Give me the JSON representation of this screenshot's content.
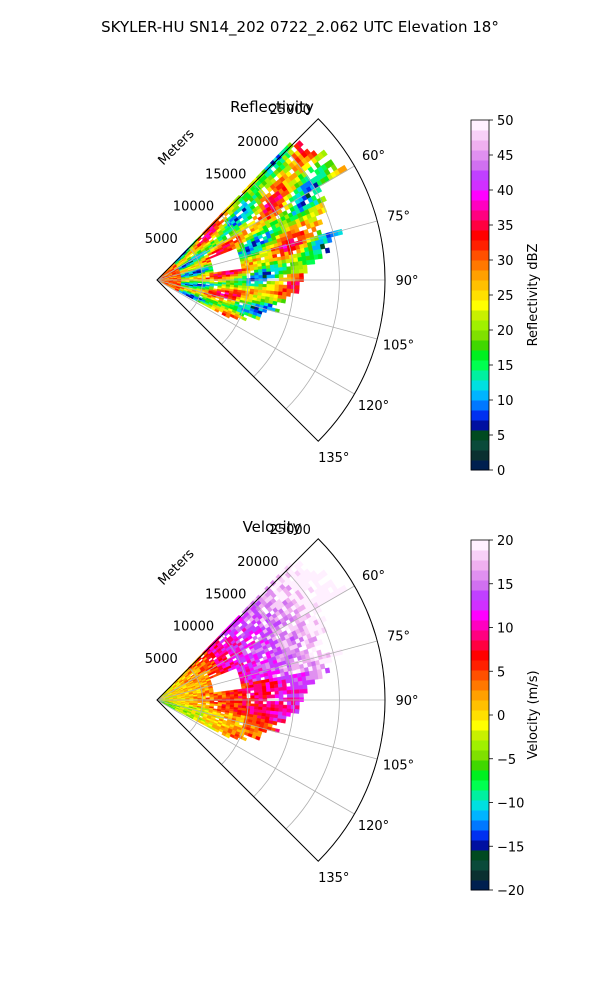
{
  "figure": {
    "suptitle": "SKYLER-HU  SN14_202  0722_2.062 UTC Elevation 18°"
  },
  "chart_data": [
    {
      "type": "heatmap",
      "projection": "polar-sector",
      "title": "Reflectivity",
      "radial_label": "Meters",
      "radial_ticks": [
        5000,
        10000,
        15000,
        20000,
        25000
      ],
      "radial_tick_labels": [
        "5000",
        "10000",
        "15000",
        "20000",
        "25000"
      ],
      "angle_ticks": [
        60,
        75,
        90,
        105,
        120,
        135
      ],
      "angle_tick_labels": [
        "60°",
        "75°",
        "90°",
        "105°",
        "120°",
        "135°"
      ],
      "angle_range": [
        45,
        135
      ],
      "radial_range": [
        0,
        25000
      ],
      "grid": true,
      "colorbar": {
        "label": "Reflectivity dBZ",
        "range": [
          0,
          50
        ],
        "ticks": [
          0,
          5,
          10,
          15,
          20,
          25,
          30,
          35,
          40,
          45,
          50
        ],
        "tick_labels": [
          "0",
          "5",
          "10",
          "15",
          "20",
          "25",
          "30",
          "35",
          "40",
          "45",
          "50"
        ],
        "colors": [
          "#001f4f",
          "#0a3030",
          "#0a4a3a",
          "#004a20",
          "#0010a0",
          "#0030f0",
          "#0078ff",
          "#00b4ff",
          "#00e0e0",
          "#00f0a0",
          "#00ff50",
          "#00f020",
          "#40d800",
          "#80e000",
          "#a0f000",
          "#c8f000",
          "#ffff00",
          "#ffe000",
          "#ffc000",
          "#ffa000",
          "#ff7800",
          "#ff5000",
          "#ff2000",
          "#ff0000",
          "#ff0040",
          "#ff0080",
          "#ff00c0",
          "#ff00ff",
          "#d030ff",
          "#c040ff",
          "#d070f0",
          "#e090f0",
          "#f0b0f0",
          "#f8d0f8",
          "#fff0ff"
        ]
      },
      "echo_pattern": "cells"
    },
    {
      "type": "heatmap",
      "projection": "polar-sector",
      "title": "Velocity",
      "radial_label": "Meters",
      "radial_ticks": [
        5000,
        10000,
        15000,
        20000,
        25000
      ],
      "radial_tick_labels": [
        "5000",
        "10000",
        "15000",
        "20000",
        "25000"
      ],
      "angle_ticks": [
        60,
        75,
        90,
        105,
        120,
        135
      ],
      "angle_tick_labels": [
        "60°",
        "75°",
        "90°",
        "105°",
        "120°",
        "135°"
      ],
      "angle_range": [
        45,
        135
      ],
      "radial_range": [
        0,
        25000
      ],
      "grid": true,
      "colorbar": {
        "label": "Velocity (m/s)",
        "range": [
          -20,
          20
        ],
        "ticks": [
          -20,
          -15,
          -10,
          -5,
          0,
          5,
          10,
          15,
          20
        ],
        "tick_labels": [
          "−20",
          "−15",
          "−10",
          "−5",
          "0",
          "5",
          "10",
          "15",
          "20"
        ],
        "colors": [
          "#001f4f",
          "#0a3030",
          "#0a4a3a",
          "#004a20",
          "#0010a0",
          "#0030f0",
          "#0078ff",
          "#00b4ff",
          "#00e0e0",
          "#00f0a0",
          "#00ff50",
          "#00f020",
          "#40d800",
          "#80e000",
          "#a0f000",
          "#c8f000",
          "#ffff00",
          "#ffe000",
          "#ffc000",
          "#ffa000",
          "#ff7800",
          "#ff5000",
          "#ff2000",
          "#ff0000",
          "#ff0040",
          "#ff0080",
          "#ff00c0",
          "#ff00ff",
          "#d030ff",
          "#c040ff",
          "#d070f0",
          "#e090f0",
          "#f0b0f0",
          "#f8d0f8",
          "#fff0ff"
        ]
      },
      "echo_pattern": "velocity"
    }
  ]
}
